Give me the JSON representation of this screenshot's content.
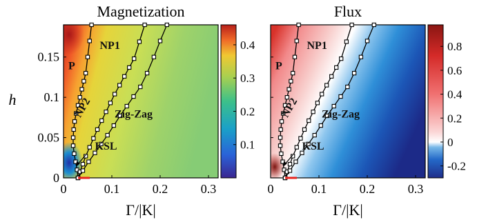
{
  "chart_data": [
    {
      "type": "heatmap",
      "title": "Magnetization",
      "xlabel": "Γ/|K|",
      "ylabel": "h",
      "xlim": [
        0,
        0.32
      ],
      "ylim": [
        0,
        0.19
      ],
      "xticks": [
        "0",
        "0.1",
        "0.2",
        "0.3"
      ],
      "yticks": [
        "0",
        "0.05",
        "0.1",
        "0.15"
      ],
      "colorbar": {
        "range": [
          0,
          0.46
        ],
        "ticks": [
          "0.1",
          "0.2",
          "0.3",
          "0.4"
        ],
        "colormap": "parula-like (blue to yellow)"
      },
      "regions": [
        {
          "label": "P",
          "x": 0.01,
          "y": 0.135
        },
        {
          "label": "NP1",
          "x": 0.075,
          "y": 0.16
        },
        {
          "label": "NP2",
          "x": 0.045,
          "y": 0.085
        },
        {
          "label": "Zig-Zag",
          "x": 0.145,
          "y": 0.075
        },
        {
          "label": "KSL",
          "x": 0.065,
          "y": 0.035
        }
      ],
      "series": [
        {
          "x": [
            0.03,
            0.028,
            0.025,
            0.022,
            0.02,
            0.02,
            0.021,
            0.023,
            0.026,
            0.03,
            0.034,
            0.038,
            0.042,
            0.046,
            0.05,
            0.054,
            0.058
          ],
          "y": [
            0,
            0.01,
            0.02,
            0.03,
            0.04,
            0.05,
            0.06,
            0.07,
            0.08,
            0.09,
            0.1,
            0.11,
            0.12,
            0.13,
            0.15,
            0.17,
            0.19
          ]
        },
        {
          "x": [
            0.03,
            0.034,
            0.04,
            0.046,
            0.054,
            0.062,
            0.07,
            0.079,
            0.088,
            0.097,
            0.106,
            0.116,
            0.126,
            0.136,
            0.146,
            0.157,
            0.168
          ],
          "y": [
            0,
            0.0075,
            0.017,
            0.027,
            0.038,
            0.049,
            0.06,
            0.071,
            0.082,
            0.093,
            0.104,
            0.115,
            0.126,
            0.137,
            0.148,
            0.169,
            0.19
          ]
        },
        {
          "x": [
            0.03,
            0.04,
            0.052,
            0.065,
            0.078,
            0.091,
            0.104,
            0.117,
            0.131,
            0.145,
            0.159,
            0.173,
            0.187,
            0.2,
            0.214
          ],
          "y": [
            0,
            0.009,
            0.02,
            0.031,
            0.042,
            0.053,
            0.065,
            0.077,
            0.089,
            0.101,
            0.113,
            0.13,
            0.15,
            0.17,
            0.19
          ]
        }
      ]
    },
    {
      "type": "heatmap",
      "title": "Flux",
      "xlabel": "Γ/|K|",
      "ylabel": "",
      "xlim": [
        0,
        0.32
      ],
      "ylim": [
        0,
        0.19
      ],
      "xticks": [
        "0",
        "0.1",
        "0.2",
        "0.3"
      ],
      "yticks": [],
      "colorbar": {
        "range": [
          -0.3,
          0.98
        ],
        "ticks": [
          "0.8",
          "0.6",
          "0.4",
          "0.2",
          "0",
          "-0.2"
        ],
        "colormap": "diverging (red-white-blue)"
      },
      "regions": [
        {
          "label": "P",
          "x": 0.01,
          "y": 0.135
        },
        {
          "label": "NP1",
          "x": 0.075,
          "y": 0.16
        },
        {
          "label": "NP2",
          "x": 0.045,
          "y": 0.085
        },
        {
          "label": "Zig-Zag",
          "x": 0.145,
          "y": 0.075
        },
        {
          "label": "KSL",
          "x": 0.065,
          "y": 0.035
        }
      ],
      "series": [
        {
          "x": [
            0.03,
            0.028,
            0.025,
            0.022,
            0.02,
            0.02,
            0.021,
            0.023,
            0.026,
            0.03,
            0.034,
            0.038,
            0.042,
            0.046,
            0.05,
            0.054,
            0.058
          ],
          "y": [
            0,
            0.01,
            0.02,
            0.03,
            0.04,
            0.05,
            0.06,
            0.07,
            0.08,
            0.09,
            0.1,
            0.11,
            0.12,
            0.13,
            0.15,
            0.17,
            0.19
          ]
        },
        {
          "x": [
            0.03,
            0.034,
            0.04,
            0.046,
            0.054,
            0.062,
            0.07,
            0.079,
            0.088,
            0.097,
            0.106,
            0.116,
            0.126,
            0.136,
            0.146,
            0.157,
            0.168
          ],
          "y": [
            0,
            0.0075,
            0.017,
            0.027,
            0.038,
            0.049,
            0.06,
            0.071,
            0.082,
            0.093,
            0.104,
            0.115,
            0.126,
            0.137,
            0.148,
            0.169,
            0.19
          ]
        },
        {
          "x": [
            0.03,
            0.04,
            0.052,
            0.065,
            0.078,
            0.091,
            0.104,
            0.117,
            0.131,
            0.145,
            0.159,
            0.173,
            0.187,
            0.2,
            0.214
          ],
          "y": [
            0,
            0.009,
            0.02,
            0.031,
            0.042,
            0.053,
            0.065,
            0.077,
            0.089,
            0.101,
            0.113,
            0.13,
            0.15,
            0.17,
            0.19
          ]
        }
      ]
    }
  ],
  "labels": {
    "left_title": "Magnetization",
    "right_title": "Flux",
    "ylabel": "h",
    "xlabel": "Γ/|K|",
    "xticks": [
      "0",
      "0.1",
      "0.2",
      "0.3"
    ],
    "yticks": [
      "0",
      "0.05",
      "0.1",
      "0.15"
    ],
    "cb1_ticks": [
      "0.1",
      "0.2",
      "0.3",
      "0.4"
    ],
    "cb2_ticks": [
      "0.8",
      "0.6",
      "0.4",
      "0.2",
      "0",
      "-0.2"
    ],
    "regions": [
      "P",
      "NP1",
      "NP2",
      "Zig-Zag",
      "KSL"
    ]
  },
  "colors": {
    "red_marker": "#e8231e",
    "frame": "#000000"
  }
}
